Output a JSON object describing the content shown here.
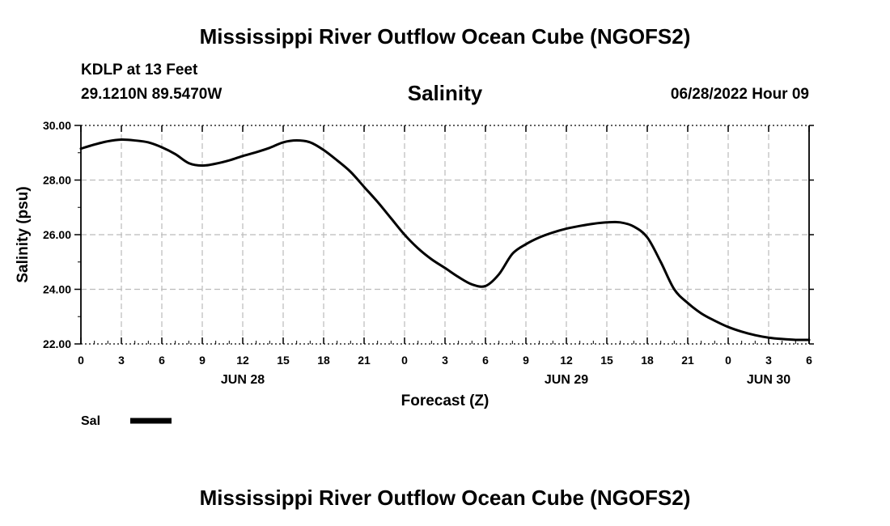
{
  "header": {
    "title": "Mississippi River Outflow Ocean Cube (NGOFS2)",
    "station": "KDLP at 13 Feet",
    "coords": "29.1210N  89.5470W",
    "subtitle": "Salinity",
    "datetime": "06/28/2022 Hour 09"
  },
  "footer": {
    "title": "Mississippi River Outflow Ocean Cube (NGOFS2)"
  },
  "chart_data": {
    "type": "line",
    "title": "Salinity",
    "xlabel": "Forecast (Z)",
    "ylabel": "Salinity (psu)",
    "xlim": [
      0,
      54
    ],
    "ylim": [
      22,
      30
    ],
    "x_ticks": [
      0,
      3,
      6,
      9,
      12,
      15,
      18,
      21,
      24,
      27,
      30,
      33,
      36,
      39,
      42,
      45,
      48,
      51,
      54
    ],
    "x_tick_labels": [
      "0",
      "3",
      "6",
      "9",
      "12",
      "15",
      "18",
      "21",
      "0",
      "3",
      "6",
      "9",
      "12",
      "15",
      "18",
      "21",
      "0",
      "3",
      "6"
    ],
    "y_ticks": [
      22,
      24,
      26,
      28,
      30
    ],
    "y_tick_labels": [
      "22.00",
      "24.00",
      "26.00",
      "28.00",
      "30.00"
    ],
    "day_labels": [
      {
        "x": 12,
        "label": "JUN 28"
      },
      {
        "x": 36,
        "label": "JUN 29"
      },
      {
        "x": 51,
        "label": "JUN 30"
      }
    ],
    "grid": true,
    "legend_position": "bottom-left",
    "colors": {
      "line": "#000000",
      "grid": "#bbbbbb"
    },
    "series": [
      {
        "name": "Sal",
        "x": [
          0,
          1,
          2,
          3,
          4,
          5,
          6,
          7,
          8,
          9,
          10,
          11,
          12,
          13,
          14,
          15,
          16,
          17,
          18,
          19,
          20,
          21,
          22,
          23,
          24,
          25,
          26,
          27,
          28,
          29,
          30,
          31,
          32,
          33,
          34,
          35,
          36,
          37,
          38,
          39,
          40,
          41,
          42,
          43,
          44,
          45,
          46,
          47,
          48,
          49,
          50,
          51,
          52,
          53,
          54
        ],
        "values": [
          29.15,
          29.3,
          29.42,
          29.48,
          29.45,
          29.38,
          29.2,
          28.95,
          28.62,
          28.53,
          28.6,
          28.72,
          28.88,
          29.02,
          29.18,
          29.38,
          29.45,
          29.38,
          29.1,
          28.72,
          28.3,
          27.75,
          27.2,
          26.6,
          26.0,
          25.5,
          25.1,
          24.78,
          24.45,
          24.18,
          24.12,
          24.55,
          25.3,
          25.65,
          25.9,
          26.08,
          26.22,
          26.32,
          26.4,
          26.45,
          26.45,
          26.3,
          25.9,
          25.0,
          24.0,
          23.5,
          23.12,
          22.85,
          22.62,
          22.45,
          22.32,
          22.23,
          22.18,
          22.15,
          22.15
        ]
      }
    ]
  }
}
